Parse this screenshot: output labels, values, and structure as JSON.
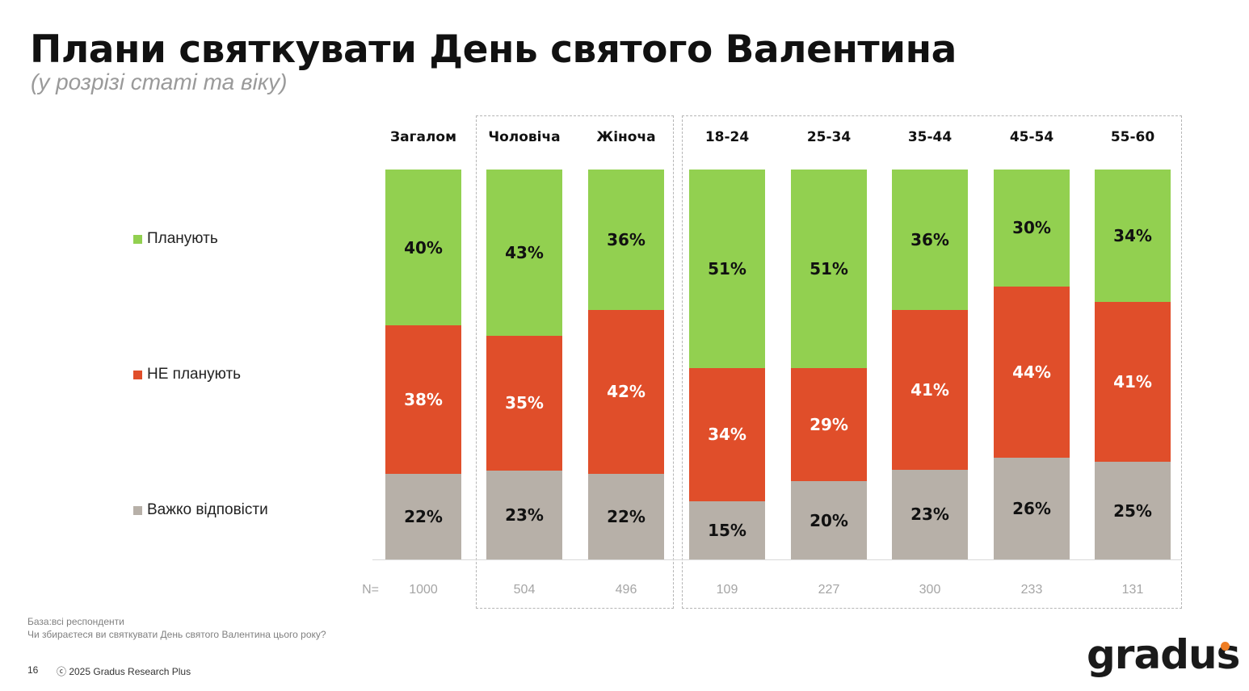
{
  "title": "Плани святкувати День святого Валентина",
  "subtitle": "(у розрізі статі та віку)",
  "chart_data": {
    "type": "bar",
    "stacked": true,
    "categories": [
      "Загалом",
      "Чоловіча",
      "Жіноча",
      "18-24",
      "25-34",
      "35-44",
      "45-54",
      "55-60"
    ],
    "series": [
      {
        "name": "Планують",
        "color": "#92d050",
        "values": [
          40,
          43,
          36,
          51,
          51,
          36,
          30,
          34
        ]
      },
      {
        "name": "НЕ планують",
        "color": "#e04e2a",
        "values": [
          38,
          35,
          42,
          34,
          29,
          41,
          44,
          41
        ]
      },
      {
        "name": "Важко відповісти",
        "color": "#b7b0a8",
        "values": [
          22,
          23,
          22,
          15,
          20,
          23,
          26,
          25
        ]
      }
    ],
    "n_label": "N=",
    "n_values": [
      "1000",
      "504",
      "496",
      "109",
      "227",
      "300",
      "233",
      "131"
    ],
    "legend": "left",
    "grid": false
  },
  "footer": {
    "base": "База:всі респонденти",
    "question": "Чи збираєтеся ви святкувати День святого Валентина цього року?",
    "page": "16",
    "copyright": "ⓒ 2025 Gradus Research Plus"
  },
  "logo": "gradus"
}
